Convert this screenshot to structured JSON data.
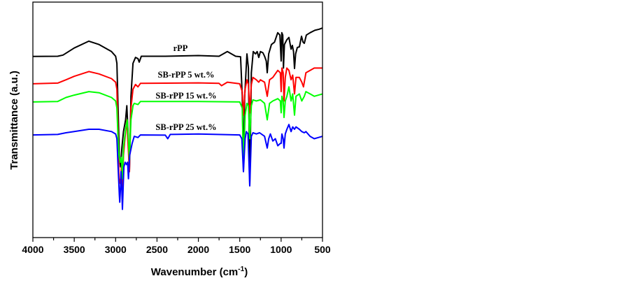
{
  "chart_data": {
    "type": "line",
    "title": "",
    "xlabel": "Wavenumber (cm",
    "xlabel_sup": "-1",
    "xlabel_close": ")",
    "ylabel": "Transmittance (a.u.)",
    "xlim": [
      4000,
      500
    ],
    "ylim": [
      0,
      100
    ],
    "x_ticks": [
      4000,
      3500,
      3000,
      2500,
      2000,
      1500,
      1000,
      500
    ],
    "x_tick_labels": [
      "4000",
      "3500",
      "3000",
      "2500",
      "2000",
      "1500",
      "1000",
      "500"
    ],
    "x_minor_step": 250,
    "grid": false,
    "legend": "inline labels above each curve",
    "series": [
      {
        "name": "rPP",
        "color": "#000000",
        "points": [
          [
            4000,
            76.9
          ],
          [
            3700,
            77
          ],
          [
            3636,
            77.5
          ],
          [
            3500,
            80.5
          ],
          [
            3324,
            83.4
          ],
          [
            3200,
            82
          ],
          [
            3050,
            79
          ],
          [
            3000,
            77
          ],
          [
            2985,
            74
          ],
          [
            2970,
            55
          ],
          [
            2955,
            35
          ],
          [
            2940,
            30
          ],
          [
            2925,
            38
          ],
          [
            2905,
            45
          ],
          [
            2880,
            50
          ],
          [
            2865,
            56
          ],
          [
            2850,
            45
          ],
          [
            2833,
            28
          ],
          [
            2815,
            60
          ],
          [
            2790,
            74
          ],
          [
            2760,
            76.5
          ],
          [
            2730,
            76
          ],
          [
            2715,
            74.5
          ],
          [
            2690,
            77
          ],
          [
            2400,
            77
          ],
          [
            2000,
            77.3
          ],
          [
            1750,
            77
          ],
          [
            1650,
            79
          ],
          [
            1550,
            77
          ],
          [
            1490,
            76.8
          ],
          [
            1470,
            60
          ],
          [
            1455,
            28
          ],
          [
            1440,
            60
          ],
          [
            1413,
            78
          ],
          [
            1395,
            72
          ],
          [
            1379,
            22
          ],
          [
            1360,
            70
          ],
          [
            1337,
            79
          ],
          [
            1310,
            78
          ],
          [
            1290,
            79
          ],
          [
            1270,
            76.5
          ],
          [
            1250,
            79
          ],
          [
            1220,
            78.5
          ],
          [
            1200,
            77
          ],
          [
            1180,
            75
          ],
          [
            1168,
            70
          ],
          [
            1150,
            78
          ],
          [
            1117,
            82
          ],
          [
            1080,
            83
          ],
          [
            1041,
            87
          ],
          [
            1015,
            86
          ],
          [
            1000,
            75
          ],
          [
            992,
            87
          ],
          [
            980,
            86
          ],
          [
            972,
            72
          ],
          [
            960,
            82
          ],
          [
            931,
            84
          ],
          [
            906,
            85
          ],
          [
            880,
            80
          ],
          [
            864,
            81.6
          ],
          [
            850,
            79
          ],
          [
            838,
            71.8
          ],
          [
            825,
            78
          ],
          [
            804,
            80.7
          ],
          [
            779,
            81
          ],
          [
            754,
            85.5
          ],
          [
            735,
            83
          ],
          [
            720,
            82.5
          ],
          [
            695,
            86
          ],
          [
            650,
            87
          ],
          [
            593,
            88
          ],
          [
            540,
            88.5
          ],
          [
            500,
            89
          ]
        ]
      },
      {
        "name": "SB-rPP 5 wt.%",
        "color": "#ff0000",
        "points": [
          [
            4000,
            65.3
          ],
          [
            3700,
            65.6
          ],
          [
            3600,
            67
          ],
          [
            3500,
            68.5
          ],
          [
            3324,
            70.5
          ],
          [
            3200,
            69.5
          ],
          [
            3050,
            67.5
          ],
          [
            3000,
            66
          ],
          [
            2985,
            63
          ],
          [
            2970,
            45
          ],
          [
            2960,
            25
          ],
          [
            2945,
            23
          ],
          [
            2930,
            30
          ],
          [
            2918,
            20
          ],
          [
            2905,
            35
          ],
          [
            2880,
            45
          ],
          [
            2865,
            50
          ],
          [
            2850,
            40
          ],
          [
            2833,
            28
          ],
          [
            2815,
            55
          ],
          [
            2790,
            63
          ],
          [
            2760,
            65
          ],
          [
            2730,
            64
          ],
          [
            2700,
            65.5
          ],
          [
            2000,
            65.7
          ],
          [
            1750,
            65.5
          ],
          [
            1720,
            64.5
          ],
          [
            1650,
            66
          ],
          [
            1500,
            65.3
          ],
          [
            1470,
            62
          ],
          [
            1455,
            52
          ],
          [
            1435,
            63
          ],
          [
            1413,
            67
          ],
          [
            1395,
            65
          ],
          [
            1379,
            53
          ],
          [
            1360,
            65
          ],
          [
            1340,
            68
          ],
          [
            1300,
            67
          ],
          [
            1270,
            66
          ],
          [
            1250,
            67
          ],
          [
            1200,
            66
          ],
          [
            1168,
            60
          ],
          [
            1140,
            67
          ],
          [
            1100,
            68
          ],
          [
            1040,
            71
          ],
          [
            1010,
            70
          ],
          [
            1000,
            62
          ],
          [
            990,
            72
          ],
          [
            975,
            70
          ],
          [
            965,
            58
          ],
          [
            950,
            68
          ],
          [
            931,
            72
          ],
          [
            906,
            71
          ],
          [
            880,
            67
          ],
          [
            860,
            69
          ],
          [
            838,
            61
          ],
          [
            820,
            68
          ],
          [
            780,
            68
          ],
          [
            750,
            66
          ],
          [
            730,
            64
          ],
          [
            700,
            70
          ],
          [
            650,
            71
          ],
          [
            600,
            72
          ],
          [
            500,
            72
          ]
        ]
      },
      {
        "name": "SB-rPP 15 wt.%",
        "color": "#00ff00",
        "points": [
          [
            4000,
            57.6
          ],
          [
            3700,
            57.8
          ],
          [
            3600,
            59.5
          ],
          [
            3500,
            60.5
          ],
          [
            3324,
            62
          ],
          [
            3200,
            61.5
          ],
          [
            3050,
            59.5
          ],
          [
            3000,
            58
          ],
          [
            2985,
            55
          ],
          [
            2970,
            42
          ],
          [
            2960,
            35
          ],
          [
            2945,
            32
          ],
          [
            2930,
            34
          ],
          [
            2918,
            25
          ],
          [
            2905,
            38
          ],
          [
            2880,
            46
          ],
          [
            2860,
            50
          ],
          [
            2845,
            42
          ],
          [
            2833,
            32
          ],
          [
            2815,
            50
          ],
          [
            2790,
            56
          ],
          [
            2775,
            57
          ],
          [
            2730,
            56.5
          ],
          [
            2700,
            57.8
          ],
          [
            2000,
            57.8
          ],
          [
            1500,
            57.6
          ],
          [
            1470,
            55
          ],
          [
            1455,
            30
          ],
          [
            1435,
            52
          ],
          [
            1413,
            57
          ],
          [
            1395,
            56
          ],
          [
            1379,
            42
          ],
          [
            1360,
            56
          ],
          [
            1340,
            58.5
          ],
          [
            1300,
            58
          ],
          [
            1250,
            58.5
          ],
          [
            1200,
            57
          ],
          [
            1168,
            50
          ],
          [
            1140,
            57
          ],
          [
            1100,
            58
          ],
          [
            1040,
            59
          ],
          [
            1010,
            58
          ],
          [
            1000,
            53
          ],
          [
            990,
            60
          ],
          [
            975,
            58
          ],
          [
            965,
            51
          ],
          [
            950,
            58
          ],
          [
            930,
            60
          ],
          [
            906,
            64
          ],
          [
            880,
            58
          ],
          [
            860,
            61
          ],
          [
            838,
            52
          ],
          [
            820,
            60
          ],
          [
            780,
            61
          ],
          [
            750,
            58
          ],
          [
            720,
            60
          ],
          [
            700,
            62
          ],
          [
            650,
            61
          ],
          [
            600,
            60
          ],
          [
            500,
            61
          ]
        ]
      },
      {
        "name": "SB-rPP 25 wt.%",
        "color": "#0000ff",
        "points": [
          [
            4000,
            43.6
          ],
          [
            3700,
            43.8
          ],
          [
            3600,
            44.5
          ],
          [
            3500,
            45
          ],
          [
            3324,
            46
          ],
          [
            3200,
            46
          ],
          [
            3050,
            45
          ],
          [
            3000,
            44
          ],
          [
            2985,
            42
          ],
          [
            2970,
            30
          ],
          [
            2955,
            18
          ],
          [
            2950,
            15
          ],
          [
            2940,
            22
          ],
          [
            2935,
            28
          ],
          [
            2925,
            20
          ],
          [
            2918,
            12
          ],
          [
            2905,
            25
          ],
          [
            2900,
            30
          ],
          [
            2885,
            32
          ],
          [
            2870,
            31
          ],
          [
            2855,
            32
          ],
          [
            2845,
            25
          ],
          [
            2830,
            35
          ],
          [
            2800,
            40
          ],
          [
            2775,
            43
          ],
          [
            2730,
            42.5
          ],
          [
            2700,
            43.6
          ],
          [
            2400,
            43.5
          ],
          [
            2370,
            42
          ],
          [
            2340,
            43.8
          ],
          [
            2000,
            44
          ],
          [
            1500,
            43.6
          ],
          [
            1475,
            42
          ],
          [
            1455,
            28
          ],
          [
            1435,
            42
          ],
          [
            1420,
            45
          ],
          [
            1400,
            44
          ],
          [
            1379,
            22
          ],
          [
            1360,
            43
          ],
          [
            1340,
            44.5
          ],
          [
            1300,
            44
          ],
          [
            1260,
            44.5
          ],
          [
            1200,
            43
          ],
          [
            1168,
            38
          ],
          [
            1150,
            42
          ],
          [
            1130,
            44
          ],
          [
            1100,
            41
          ],
          [
            1070,
            42
          ],
          [
            1040,
            39
          ],
          [
            1010,
            40
          ],
          [
            1000,
            40
          ],
          [
            990,
            44
          ],
          [
            975,
            42
          ],
          [
            965,
            38
          ],
          [
            950,
            44
          ],
          [
            930,
            46
          ],
          [
            906,
            48
          ],
          [
            880,
            45
          ],
          [
            860,
            47
          ],
          [
            838,
            46
          ],
          [
            820,
            47
          ],
          [
            780,
            46
          ],
          [
            750,
            45
          ],
          [
            720,
            44.5
          ],
          [
            700,
            45
          ],
          [
            650,
            43
          ],
          [
            600,
            42
          ],
          [
            550,
            42.5
          ],
          [
            500,
            43
          ]
        ]
      }
    ]
  }
}
